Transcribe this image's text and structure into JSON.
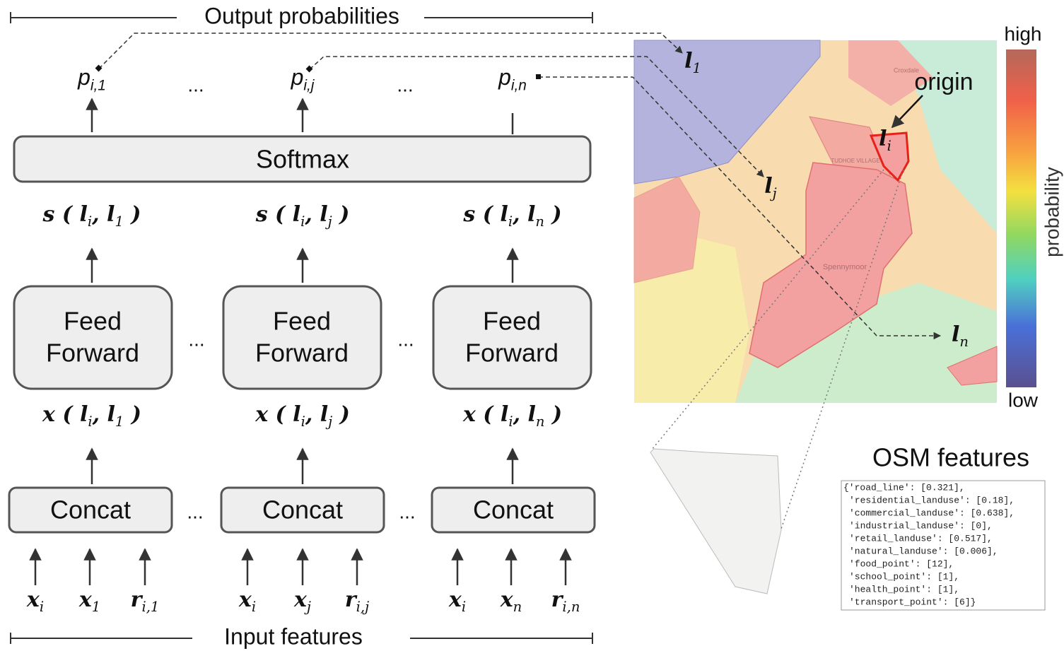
{
  "header": {
    "title": "Output probabilities"
  },
  "footer": {
    "title": "Input features"
  },
  "ellipsis": "...",
  "outputs": [
    [
      {
        "t": "p"
      },
      {
        "t": "i,1",
        "sub": true
      }
    ],
    [
      {
        "t": "p"
      },
      {
        "t": "i,j",
        "sub": true
      }
    ],
    [
      {
        "t": "p"
      },
      {
        "t": "i,n",
        "sub": true
      }
    ]
  ],
  "softmax": "Softmax",
  "scores": [
    [
      {
        "t": "s ( "
      },
      {
        "t": "l"
      },
      {
        "t": "i",
        "sub": true
      },
      {
        "t": ", "
      },
      {
        "t": "l"
      },
      {
        "t": "1",
        "sub": true
      },
      {
        "t": " )"
      }
    ],
    [
      {
        "t": "s ( "
      },
      {
        "t": "l"
      },
      {
        "t": "i",
        "sub": true
      },
      {
        "t": ", "
      },
      {
        "t": "l"
      },
      {
        "t": "j",
        "sub": true
      },
      {
        "t": " )"
      }
    ],
    [
      {
        "t": "s ( "
      },
      {
        "t": "l"
      },
      {
        "t": "i",
        "sub": true
      },
      {
        "t": ", "
      },
      {
        "t": "l"
      },
      {
        "t": "n",
        "sub": true
      },
      {
        "t": " )"
      }
    ]
  ],
  "feed_forward": {
    "line1": "Feed",
    "line2": "Forward"
  },
  "pairs": [
    [
      {
        "t": "x ( "
      },
      {
        "t": "l"
      },
      {
        "t": "i",
        "sub": true
      },
      {
        "t": ", "
      },
      {
        "t": "l"
      },
      {
        "t": "1",
        "sub": true
      },
      {
        "t": " )"
      }
    ],
    [
      {
        "t": "x ( "
      },
      {
        "t": "l"
      },
      {
        "t": "i",
        "sub": true
      },
      {
        "t": ", "
      },
      {
        "t": "l"
      },
      {
        "t": "j",
        "sub": true
      },
      {
        "t": " )"
      }
    ],
    [
      {
        "t": "x ( "
      },
      {
        "t": "l"
      },
      {
        "t": "i",
        "sub": true
      },
      {
        "t": ", "
      },
      {
        "t": "l"
      },
      {
        "t": "n",
        "sub": true
      },
      {
        "t": " )"
      }
    ]
  ],
  "concat": "Concat",
  "inputs": [
    [
      [
        {
          "t": "x"
        },
        {
          "t": "i",
          "sub": true
        }
      ],
      [
        {
          "t": "x"
        },
        {
          "t": "1",
          "sub": true
        }
      ],
      [
        {
          "t": "r"
        },
        {
          "t": "i,1",
          "sub": true
        }
      ]
    ],
    [
      [
        {
          "t": "x"
        },
        {
          "t": "i",
          "sub": true
        }
      ],
      [
        {
          "t": "x"
        },
        {
          "t": "j",
          "sub": true
        }
      ],
      [
        {
          "t": "r"
        },
        {
          "t": "i,j",
          "sub": true
        }
      ]
    ],
    [
      [
        {
          "t": "x"
        },
        {
          "t": "i",
          "sub": true
        }
      ],
      [
        {
          "t": "x"
        },
        {
          "t": "n",
          "sub": true
        }
      ],
      [
        {
          "t": "r"
        },
        {
          "t": "i,n",
          "sub": true
        }
      ]
    ]
  ],
  "map": {
    "origin": "origin",
    "l1": [
      {
        "t": "l"
      },
      {
        "t": "1",
        "sub": true
      }
    ],
    "lj": [
      {
        "t": "l"
      },
      {
        "t": "j",
        "sub": true
      }
    ],
    "ln": [
      {
        "t": "l"
      },
      {
        "t": "n",
        "sub": true
      }
    ],
    "li": [
      {
        "t": "l"
      },
      {
        "t": "i",
        "sub": true
      }
    ],
    "places": [
      "Croxdale",
      "TUDHOE VILLAGE",
      "Spennymoor"
    ]
  },
  "colorbar": {
    "high": "high",
    "low": "low",
    "axis_label": "probability"
  },
  "osm": {
    "title": "OSM features",
    "lines": [
      "{'road_line': [0.321],",
      "'residential_landuse': [0.18],",
      "'commercial_landuse': [0.638],",
      "'industrial_landuse': [0],",
      "'retail_landuse': [0.517],",
      "'natural_landuse': [0.006],",
      "'food_point': [12],",
      "'school_point': [1],",
      "'health_point': [1],",
      "'transport_point': [6]}"
    ]
  }
}
